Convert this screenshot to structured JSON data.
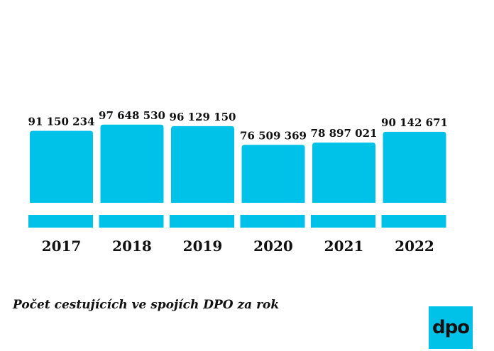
{
  "chart_data": {
    "type": "bar",
    "categories": [
      "2017",
      "2018",
      "2019",
      "2020",
      "2021",
      "2022"
    ],
    "values": [
      91150234,
      97648530,
      96129150,
      76509369,
      78897021,
      90142671
    ],
    "data_labels": [
      "91 150 234",
      "97 648 530",
      "96 129 150",
      "76 509 369",
      "78 897 021",
      "90 142 671"
    ],
    "title": "Počet cestujících ve spojích DPO za rok",
    "bar_color": "#00c1e8"
  },
  "logo": {
    "text": "dpo",
    "color": "#00c1e8"
  }
}
